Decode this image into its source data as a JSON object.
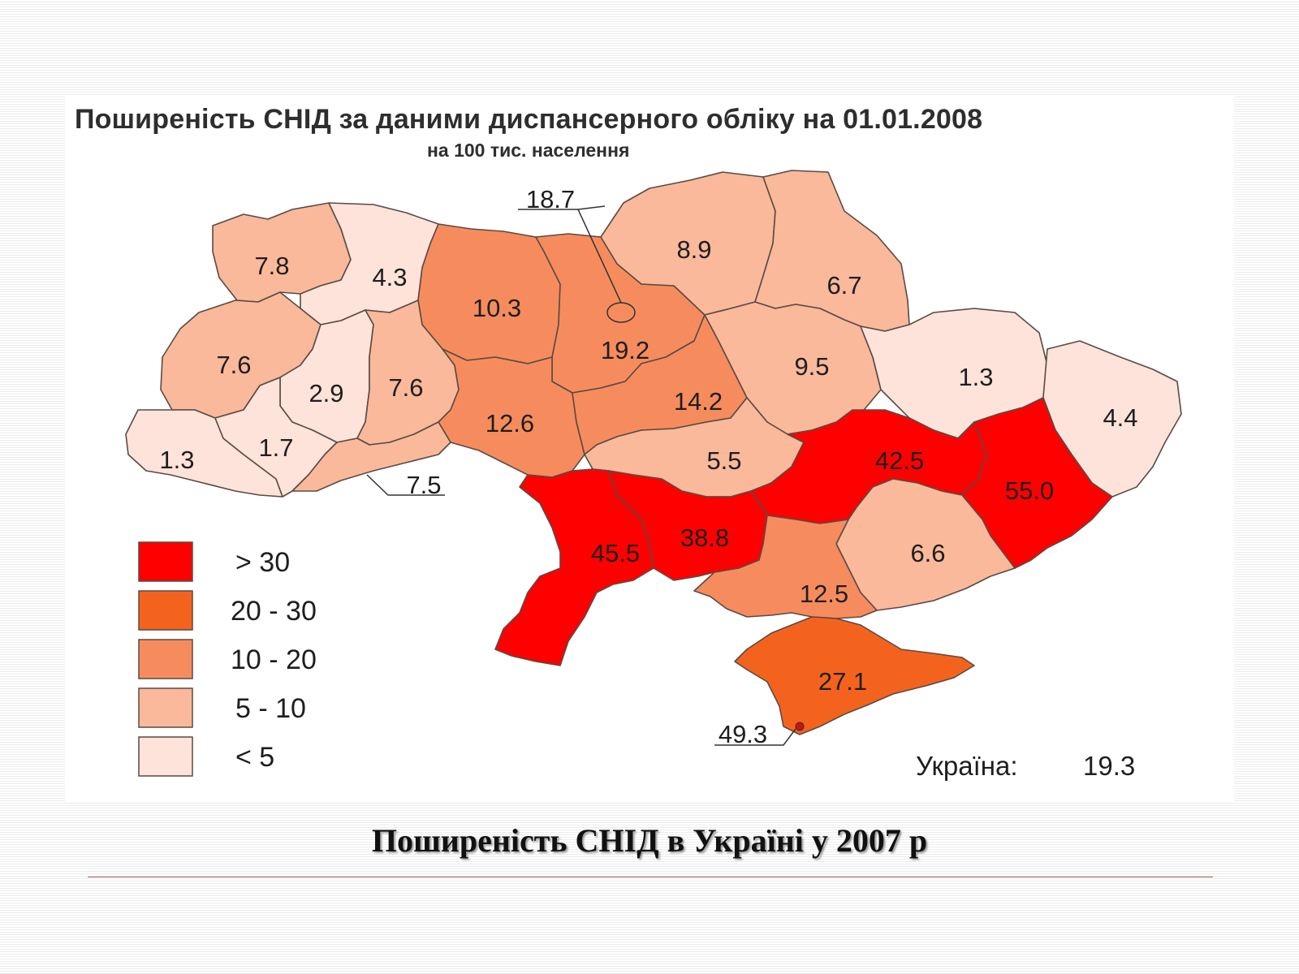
{
  "map": {
    "title": "Поширеність СНІД  за даними диспансерного обліку на 01.01.2008",
    "subtitle": "на 100 тис. населення",
    "total_label": "Україна:",
    "total_value": "19.3"
  },
  "colors": {
    "gt30": "#ff0000",
    "c20_30": "#f4631e",
    "c10_20": "#f68c5d",
    "c5_10": "#f9b99a",
    "lt5": "#fde3d9",
    "outline": "#5a4a44"
  },
  "legend": [
    {
      "label": "> 30",
      "color": "#ff0000"
    },
    {
      "label": "20 - 30",
      "color": "#f4631e"
    },
    {
      "label": "10 - 20",
      "color": "#f68c5d"
    },
    {
      "label": "5 - 10",
      "color": "#f9b99a"
    },
    {
      "label": "< 5",
      "color": "#fde3d9"
    }
  ],
  "regions": {
    "volyn": "7.8",
    "rivne": "4.3",
    "zhytomyr": "10.3",
    "kyiv_city": "18.7",
    "kyiv_oblast": "19.2",
    "chernihiv": "8.9",
    "sumy": "6.7",
    "lviv": "7.6",
    "ternopil": "2.9",
    "khmelnytskyi": "7.6",
    "vinnytsia": "12.6",
    "cherkasy": "14.2",
    "poltava": "9.5",
    "kharkiv": "1.3",
    "luhansk": "4.4",
    "zakarpattia": "1.3",
    "ivano_frankivsk": "1.7",
    "chernivtsi": "7.5",
    "kirovohrad": "5.5",
    "dnipropetrovsk": "42.5",
    "donetsk": "55.0",
    "odesa": "45.5",
    "mykolaiv": "38.8",
    "zaporizhzhia": "6.6",
    "kherson": "12.5",
    "crimea": "27.1",
    "sevastopol": "49.3"
  },
  "caption": "Поширеність СНІД в Україні у 2007 р"
}
